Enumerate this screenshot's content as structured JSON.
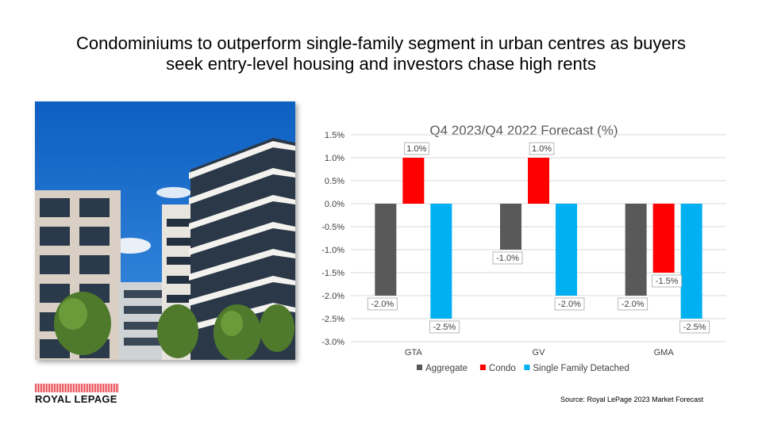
{
  "slide": {
    "title_line1": "Condominiums to outperform single-family segment in urban centres as buyers",
    "title_line2": "seek entry-level housing and investors chase high rents"
  },
  "photo": {
    "icon": "condominium-building-photo"
  },
  "logo": {
    "text": "ROYAL LEPAGE",
    "color": "#e31b23"
  },
  "source": "Source: Royal LePage 2023 Market Forecast",
  "chart_data": {
    "type": "bar",
    "title": "Q4 2023/Q4 2022 Forecast (%)",
    "categories": [
      "GTA",
      "GV",
      "GMA"
    ],
    "series": [
      {
        "name": "Aggregate",
        "color": "#595959",
        "values": [
          -2.0,
          -1.0,
          -2.0
        ],
        "labels": [
          "-2.0%",
          "-1.0%",
          "-2.0%"
        ]
      },
      {
        "name": "Condo",
        "color": "#ff0000",
        "values": [
          1.0,
          1.0,
          -1.5
        ],
        "labels": [
          "1.0%",
          "1.0%",
          "-1.5%"
        ]
      },
      {
        "name": "Single Family Detached",
        "color": "#00b0f0",
        "values": [
          -2.5,
          -2.0,
          -2.5
        ],
        "labels": [
          "-2.5%",
          "-2.0%",
          "-2.5%"
        ]
      }
    ],
    "ylim": [
      -3.0,
      1.5
    ],
    "y_ticks": [
      "1.5%",
      "1.0%",
      "0.5%",
      "0.0%",
      "-0.5%",
      "-1.0%",
      "-1.5%",
      "-2.0%",
      "-2.5%",
      "-3.0%"
    ],
    "grid": true,
    "legend": "bottom"
  }
}
